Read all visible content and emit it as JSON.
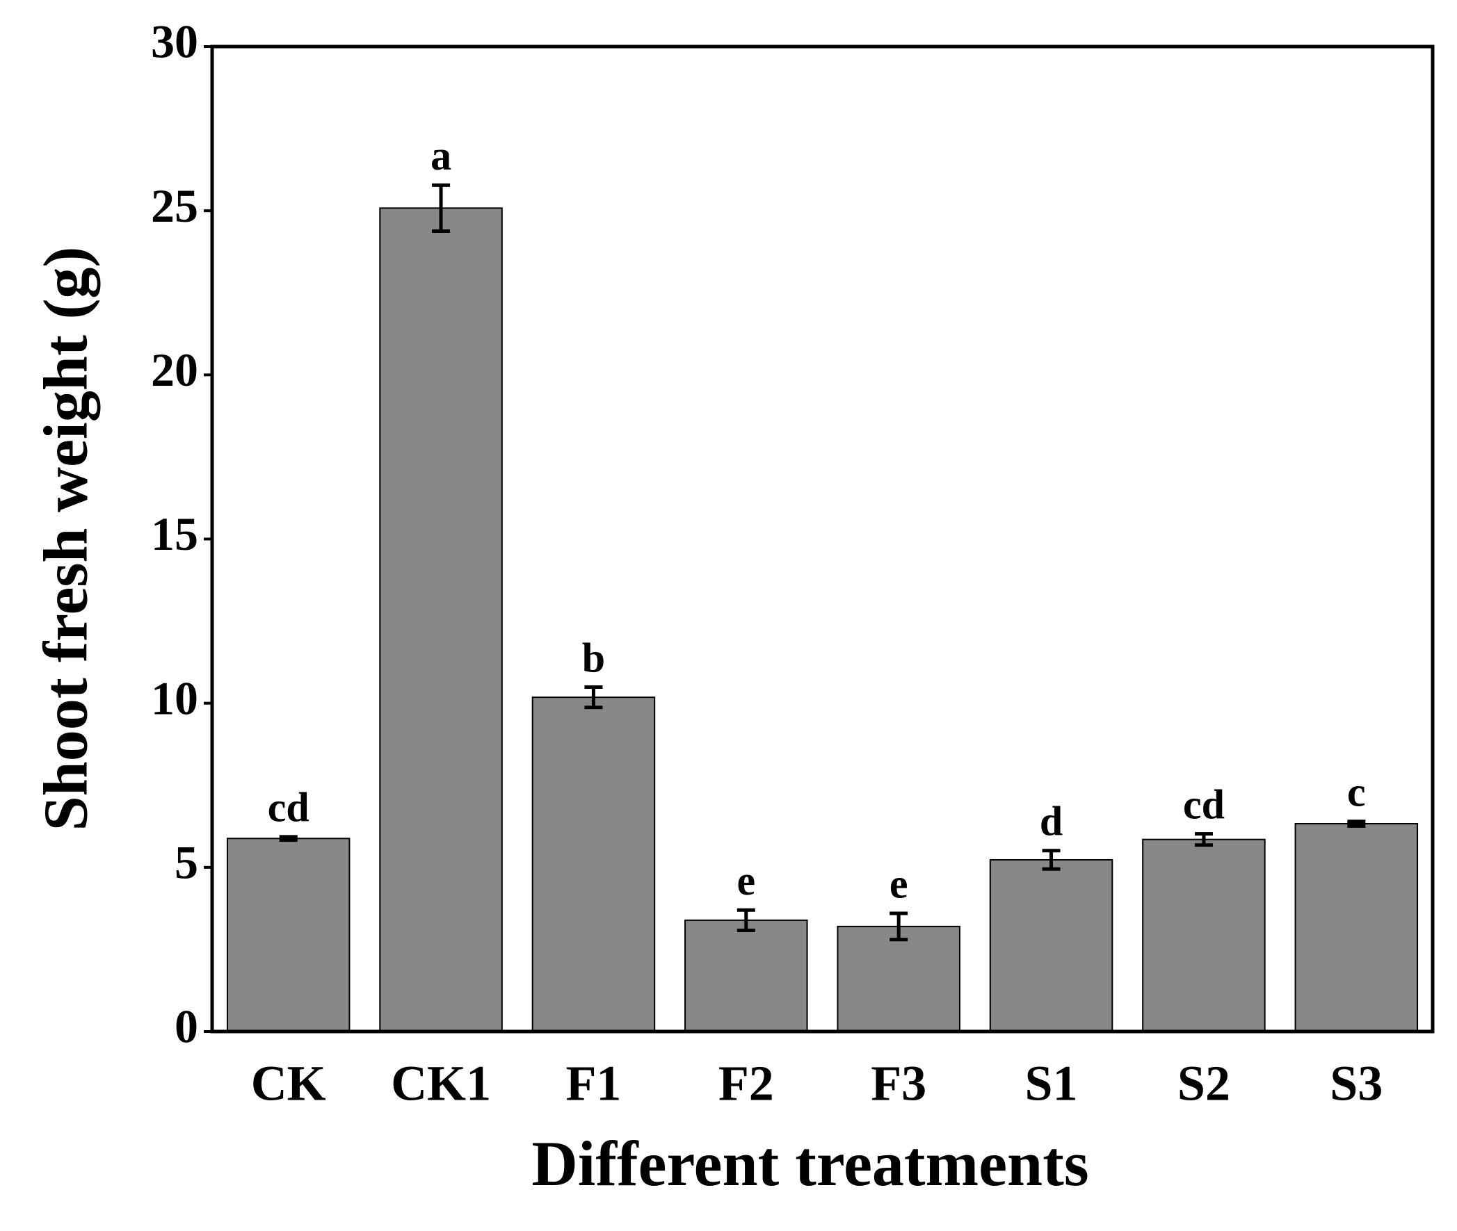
{
  "chart_data": {
    "type": "bar",
    "x_label": "Different treatments",
    "y_label": "Shoot fresh weight (g)",
    "categories": [
      "CK",
      "CK1",
      "F1",
      "F2",
      "F3",
      "S1",
      "S2",
      "S3"
    ],
    "values": [
      5.88,
      25.08,
      10.18,
      3.39,
      3.2,
      5.23,
      5.85,
      6.33
    ],
    "errors": [
      0.05,
      0.7,
      0.31,
      0.31,
      0.4,
      0.28,
      0.17,
      0.07
    ],
    "letters": [
      "cd",
      "a",
      "b",
      "e",
      "e",
      "d",
      "cd",
      "c"
    ],
    "color": "#888888",
    "ylim": [
      0,
      30
    ],
    "yticks": [
      0,
      5,
      10,
      15,
      20,
      25,
      30
    ]
  }
}
